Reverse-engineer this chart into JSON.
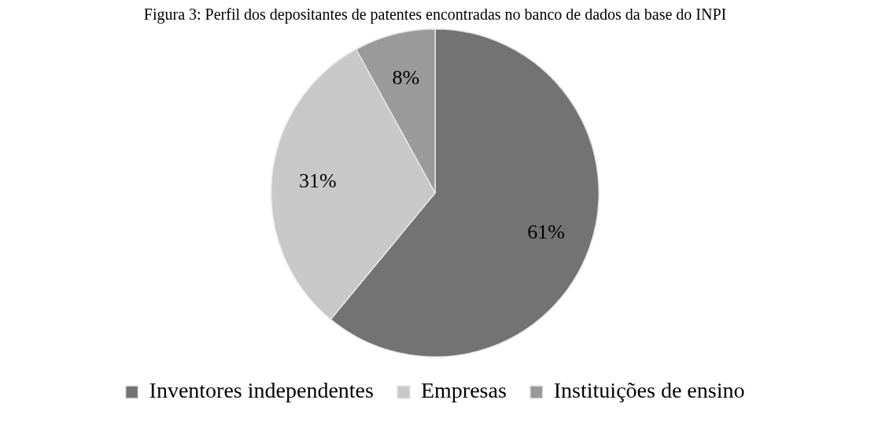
{
  "chart_data": {
    "type": "pie",
    "title": "Figura 3: Perfil dos depositantes de patentes encontradas no banco de dados da base do INPI",
    "categories": [
      "Inventores independentes",
      "Empresas",
      "Instituições de ensino"
    ],
    "values": [
      61,
      31,
      8
    ],
    "colors": [
      "#737373",
      "#c8c8c8",
      "#9a9a9a"
    ],
    "value_labels": [
      "61%",
      "31%",
      "8%"
    ],
    "legend": "bottom"
  }
}
